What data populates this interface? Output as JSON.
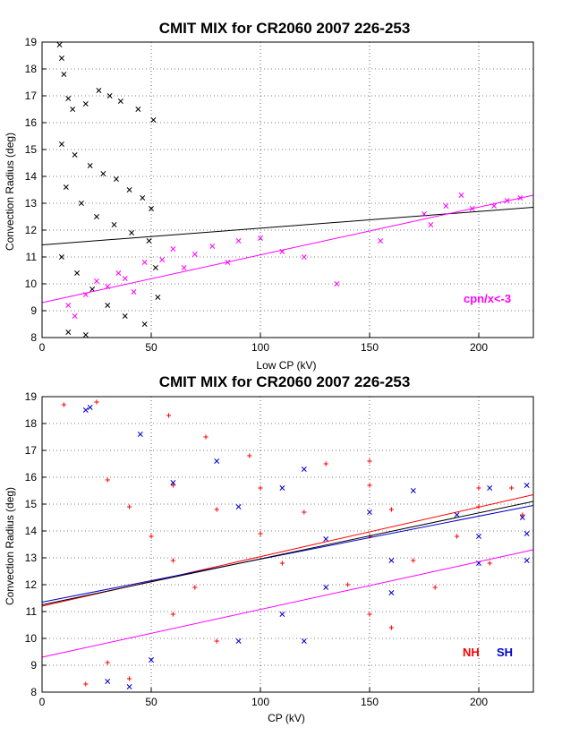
{
  "chart_data": [
    {
      "type": "scatter",
      "title": "CMIT MIX for CR2060 2007 226-253",
      "xlabel": "Low CP (kV)",
      "ylabel": "Convection Radius (deg)",
      "xlim": [
        0,
        225
      ],
      "ylim": [
        8,
        19
      ],
      "xticks": [
        0,
        50,
        100,
        150,
        200
      ],
      "yticks": [
        8,
        9,
        10,
        11,
        12,
        13,
        14,
        15,
        16,
        17,
        18,
        19
      ],
      "grid": true,
      "series": [
        {
          "color": "#000000",
          "marker": "x",
          "points": [
            [
              8,
              18.9
            ],
            [
              9,
              18.4
            ],
            [
              10,
              17.8
            ],
            [
              12,
              16.9
            ],
            [
              14,
              16.5
            ],
            [
              20,
              16.7
            ],
            [
              26,
              17.2
            ],
            [
              31,
              17.0
            ],
            [
              36,
              16.8
            ],
            [
              44,
              16.5
            ],
            [
              51,
              16.1
            ],
            [
              9,
              15.2
            ],
            [
              15,
              14.8
            ],
            [
              22,
              14.4
            ],
            [
              28,
              14.1
            ],
            [
              34,
              13.9
            ],
            [
              40,
              13.5
            ],
            [
              46,
              13.2
            ],
            [
              50,
              12.8
            ],
            [
              11,
              13.6
            ],
            [
              18,
              13.0
            ],
            [
              25,
              12.5
            ],
            [
              33,
              12.2
            ],
            [
              41,
              11.9
            ],
            [
              49,
              11.6
            ],
            [
              9,
              11.0
            ],
            [
              16,
              10.4
            ],
            [
              23,
              9.8
            ],
            [
              30,
              9.2
            ],
            [
              38,
              8.8
            ],
            [
              47,
              8.5
            ],
            [
              12,
              8.2
            ],
            [
              20,
              8.1
            ],
            [
              53,
              9.5
            ],
            [
              52,
              10.6
            ]
          ],
          "trend": [
            [
              0,
              11.45
            ],
            [
              225,
              12.85
            ]
          ]
        },
        {
          "color": "#ff00ff",
          "marker": "x",
          "points": [
            [
              12,
              9.2
            ],
            [
              15,
              8.8
            ],
            [
              20,
              9.6
            ],
            [
              25,
              10.1
            ],
            [
              30,
              9.9
            ],
            [
              35,
              10.4
            ],
            [
              38,
              10.2
            ],
            [
              42,
              9.7
            ],
            [
              47,
              10.8
            ],
            [
              55,
              10.9
            ],
            [
              60,
              11.3
            ],
            [
              65,
              10.6
            ],
            [
              70,
              11.1
            ],
            [
              78,
              11.4
            ],
            [
              85,
              10.8
            ],
            [
              90,
              11.6
            ],
            [
              100,
              11.7
            ],
            [
              110,
              11.2
            ],
            [
              120,
              11.0
            ],
            [
              135,
              10.0
            ],
            [
              155,
              11.6
            ],
            [
              175,
              12.6
            ],
            [
              178,
              12.2
            ],
            [
              185,
              12.9
            ],
            [
              192,
              13.3
            ],
            [
              197,
              12.8
            ],
            [
              207,
              12.9
            ],
            [
              213,
              13.1
            ],
            [
              219,
              13.2
            ]
          ],
          "trend": [
            [
              0,
              9.3
            ],
            [
              225,
              13.3
            ]
          ]
        }
      ],
      "annotations": [
        {
          "text": "cpn/x<-3",
          "color": "#ff00ff"
        }
      ]
    },
    {
      "type": "scatter",
      "title": "CMIT MIX for CR2060 2007 226-253",
      "xlabel": "CP (kV)",
      "ylabel": "Convection Radius (deg)",
      "xlim": [
        0,
        225
      ],
      "ylim": [
        8,
        19
      ],
      "xticks": [
        0,
        50,
        100,
        150,
        200
      ],
      "yticks": [
        8,
        9,
        10,
        11,
        12,
        13,
        14,
        15,
        16,
        17,
        18,
        19
      ],
      "grid": true,
      "series": [
        {
          "name": "NH",
          "color": "#ff0000",
          "marker": "+",
          "points": [
            [
              10,
              18.7
            ],
            [
              25,
              18.8
            ],
            [
              58,
              18.3
            ],
            [
              75,
              17.5
            ],
            [
              95,
              16.8
            ],
            [
              130,
              16.5
            ],
            [
              150,
              16.6
            ],
            [
              30,
              15.9
            ],
            [
              60,
              15.7
            ],
            [
              100,
              15.6
            ],
            [
              150,
              15.7
            ],
            [
              200,
              15.6
            ],
            [
              215,
              15.6
            ],
            [
              40,
              14.9
            ],
            [
              80,
              14.8
            ],
            [
              120,
              14.7
            ],
            [
              160,
              14.8
            ],
            [
              200,
              14.9
            ],
            [
              220,
              14.6
            ],
            [
              50,
              13.8
            ],
            [
              100,
              13.9
            ],
            [
              150,
              13.8
            ],
            [
              190,
              13.8
            ],
            [
              60,
              12.9
            ],
            [
              110,
              12.8
            ],
            [
              170,
              12.9
            ],
            [
              205,
              12.8
            ],
            [
              70,
              11.9
            ],
            [
              140,
              12.0
            ],
            [
              180,
              11.9
            ],
            [
              60,
              10.9
            ],
            [
              150,
              10.9
            ],
            [
              160,
              10.4
            ],
            [
              80,
              9.9
            ],
            [
              30,
              9.1
            ],
            [
              20,
              8.3
            ],
            [
              40,
              8.5
            ]
          ],
          "trend": [
            [
              0,
              11.2
            ],
            [
              225,
              15.35
            ]
          ]
        },
        {
          "name": "SH",
          "color": "#0000cc",
          "marker": "x",
          "points": [
            [
              20,
              18.5
            ],
            [
              22,
              18.6
            ],
            [
              45,
              17.6
            ],
            [
              80,
              16.6
            ],
            [
              120,
              16.3
            ],
            [
              60,
              15.8
            ],
            [
              110,
              15.6
            ],
            [
              170,
              15.5
            ],
            [
              205,
              15.6
            ],
            [
              222,
              15.7
            ],
            [
              90,
              14.9
            ],
            [
              150,
              14.7
            ],
            [
              190,
              14.6
            ],
            [
              220,
              14.5
            ],
            [
              130,
              13.7
            ],
            [
              200,
              13.8
            ],
            [
              222,
              13.9
            ],
            [
              160,
              12.9
            ],
            [
              200,
              12.8
            ],
            [
              222,
              12.9
            ],
            [
              130,
              11.9
            ],
            [
              160,
              11.7
            ],
            [
              110,
              10.9
            ],
            [
              90,
              9.9
            ],
            [
              120,
              9.9
            ],
            [
              50,
              9.2
            ],
            [
              30,
              8.4
            ],
            [
              40,
              8.2
            ]
          ],
          "trend": [
            [
              0,
              11.35
            ],
            [
              225,
              14.95
            ]
          ]
        },
        {
          "color": "#000000",
          "marker": "none",
          "points": [],
          "trend": [
            [
              0,
              11.25
            ],
            [
              225,
              15.1
            ]
          ]
        },
        {
          "color": "#ff00ff",
          "marker": "none",
          "points": [],
          "trend": [
            [
              0,
              9.3
            ],
            [
              225,
              13.3
            ]
          ]
        }
      ]
    }
  ]
}
